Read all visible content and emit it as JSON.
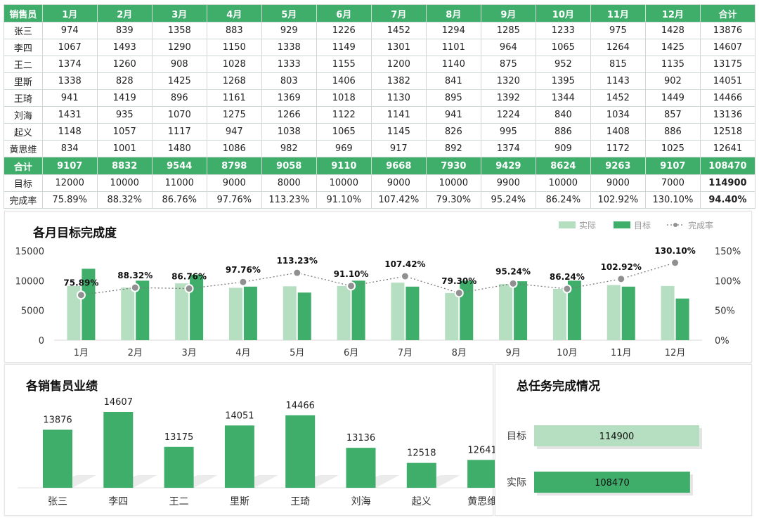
{
  "table": {
    "headers": [
      "销售员",
      "1月",
      "2月",
      "3月",
      "4月",
      "5月",
      "6月",
      "7月",
      "8月",
      "9月",
      "10月",
      "11月",
      "12月",
      "合计"
    ],
    "rows": [
      [
        "张三",
        "974",
        "839",
        "1358",
        "883",
        "929",
        "1226",
        "1452",
        "1294",
        "1285",
        "1233",
        "975",
        "1428",
        "13876"
      ],
      [
        "李四",
        "1067",
        "1493",
        "1290",
        "1150",
        "1338",
        "1149",
        "1301",
        "1101",
        "964",
        "1065",
        "1264",
        "1425",
        "14607"
      ],
      [
        "王二",
        "1374",
        "1260",
        "908",
        "1028",
        "1333",
        "1155",
        "1200",
        "1140",
        "875",
        "952",
        "815",
        "1135",
        "13175"
      ],
      [
        "里斯",
        "1338",
        "828",
        "1425",
        "1268",
        "803",
        "1406",
        "1382",
        "841",
        "1320",
        "1395",
        "1143",
        "902",
        "14051"
      ],
      [
        "王琦",
        "941",
        "1419",
        "896",
        "1161",
        "1369",
        "1018",
        "1130",
        "895",
        "1392",
        "1344",
        "1452",
        "1449",
        "14466"
      ],
      [
        "刘海",
        "1431",
        "935",
        "1070",
        "1275",
        "1266",
        "1122",
        "1141",
        "941",
        "1224",
        "840",
        "1034",
        "857",
        "13136"
      ],
      [
        "起义",
        "1148",
        "1057",
        "1117",
        "947",
        "1038",
        "1065",
        "1145",
        "826",
        "995",
        "886",
        "1408",
        "886",
        "12518"
      ],
      [
        "黄思维",
        "834",
        "1001",
        "1480",
        "1086",
        "982",
        "969",
        "917",
        "892",
        "1374",
        "909",
        "1172",
        "1025",
        "12641"
      ]
    ],
    "total_row": [
      "合计",
      "9107",
      "8832",
      "9544",
      "8798",
      "9058",
      "9110",
      "9668",
      "7930",
      "9429",
      "8624",
      "9263",
      "9107",
      "108470"
    ],
    "target_row": [
      "目标",
      "12000",
      "10000",
      "11000",
      "9000",
      "8000",
      "10000",
      "9000",
      "10000",
      "9900",
      "10000",
      "9000",
      "7000",
      "114900"
    ],
    "rate_row": [
      "完成率",
      "75.89%",
      "88.32%",
      "86.76%",
      "97.76%",
      "113.23%",
      "91.10%",
      "107.42%",
      "79.30%",
      "95.24%",
      "86.24%",
      "102.92%",
      "130.10%",
      "94.40%"
    ]
  },
  "chart_data": [
    {
      "type": "bar",
      "title": "各月目标完成度",
      "categories": [
        "1月",
        "2月",
        "3月",
        "4月",
        "5月",
        "6月",
        "7月",
        "8月",
        "9月",
        "10月",
        "11月",
        "12月"
      ],
      "series": [
        {
          "name": "实际",
          "values": [
            9107,
            8832,
            9544,
            8798,
            9058,
            9110,
            9668,
            7930,
            9429,
            8624,
            9263,
            9107
          ],
          "color": "#b5dfc0"
        },
        {
          "name": "目标",
          "values": [
            12000,
            10000,
            11000,
            9000,
            8000,
            10000,
            9000,
            10000,
            9900,
            10000,
            9000,
            7000
          ],
          "color": "#3fae6b"
        },
        {
          "name": "完成率",
          "values": [
            75.89,
            88.32,
            86.76,
            97.76,
            113.23,
            91.1,
            107.42,
            79.3,
            95.24,
            86.24,
            102.92,
            130.1
          ],
          "color": "#999999",
          "axis": "right",
          "style": "dotted-line"
        }
      ],
      "rate_labels": [
        "75.89%",
        "88.32%",
        "86.76%",
        "97.76%",
        "113.23%",
        "91.10%",
        "107.42%",
        "79.30%",
        "95.24%",
        "86.24%",
        "102.92%",
        "130.10%"
      ],
      "y_ticks": [
        "15000",
        "10000",
        "5000",
        "0"
      ],
      "y_ticks_right": [
        "150%",
        "100%",
        "50%",
        "0%"
      ],
      "ylim": [
        0,
        15000
      ],
      "ylim_right": [
        0,
        150
      ],
      "legend": "top-right"
    },
    {
      "type": "bar",
      "title": "各销售员业绩",
      "categories": [
        "张三",
        "李四",
        "王二",
        "里斯",
        "王琦",
        "刘海",
        "起义",
        "黄思维"
      ],
      "values": [
        13876,
        14607,
        13175,
        14051,
        14466,
        13136,
        12518,
        12641
      ],
      "labels": [
        "13876",
        "14607",
        "13175",
        "14051",
        "14466",
        "13136",
        "12518",
        "12641"
      ],
      "color": "#3fae6b"
    },
    {
      "type": "bar",
      "orientation": "horizontal",
      "title": "总任务完成情况",
      "categories": [
        "目标",
        "实际"
      ],
      "values": [
        114900,
        108470
      ],
      "labels": [
        "114900",
        "108470"
      ],
      "colors": [
        "#b5dfc0",
        "#3fae6b"
      ]
    }
  ]
}
